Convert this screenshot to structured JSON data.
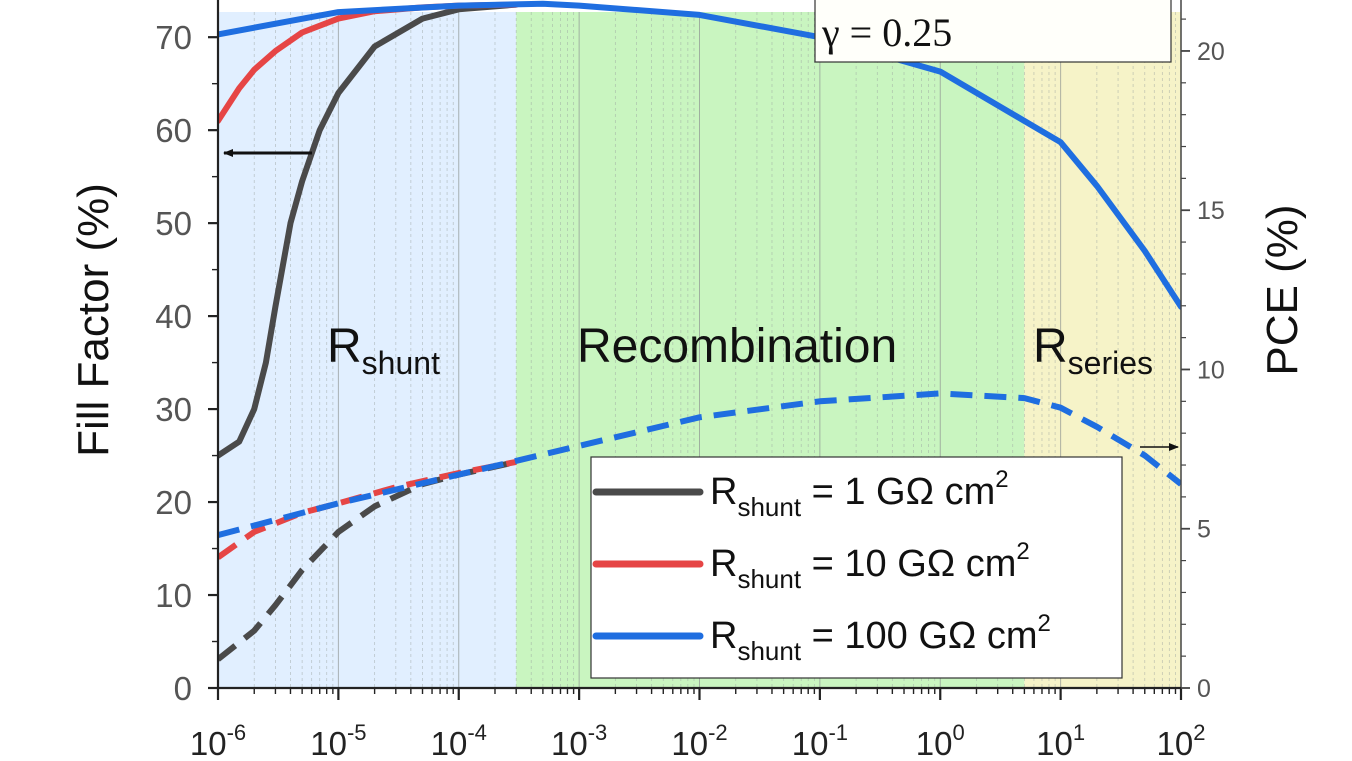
{
  "chart_data": {
    "type": "line",
    "x_scale": "log",
    "xlim": [
      1e-06,
      100
    ],
    "x_ticks": [
      {
        "value": 1e-06,
        "base": "10",
        "exp": "-6"
      },
      {
        "value": 1e-05,
        "base": "10",
        "exp": "-5"
      },
      {
        "value": 0.0001,
        "base": "10",
        "exp": "-4"
      },
      {
        "value": 0.001,
        "base": "10",
        "exp": "-3"
      },
      {
        "value": 0.01,
        "base": "10",
        "exp": "-2"
      },
      {
        "value": 0.1,
        "base": "10",
        "exp": "-1"
      },
      {
        "value": 1,
        "base": "10",
        "exp": "0"
      },
      {
        "value": 10,
        "base": "10",
        "exp": "1"
      },
      {
        "value": 100,
        "base": "10",
        "exp": "2"
      }
    ],
    "y_left": {
      "label": "Fill Factor (%)",
      "lim": [
        0,
        74
      ],
      "ticks": [
        0,
        10,
        20,
        30,
        40,
        50,
        60,
        70
      ]
    },
    "y_right": {
      "label": "PCE (%)",
      "lim": [
        0,
        21.6
      ],
      "ticks": [
        0,
        5,
        10,
        15,
        20
      ]
    },
    "regions": [
      {
        "name": "R",
        "sub": "shunt",
        "from": 1e-06,
        "to": 0.0003,
        "color": "#e1efff"
      },
      {
        "name": "Recombination",
        "sub": "",
        "from": 0.0003,
        "to": 5,
        "color": "#c9f5c0"
      },
      {
        "name": "R",
        "sub": "series",
        "from": 5,
        "to": 100,
        "color": "#f6f3c8"
      }
    ],
    "annotation": "γ = 0.25",
    "legend_position": "bottom-right",
    "series": [
      {
        "name": "R",
        "name_sub": "shunt",
        "name_rest": " = 1 GΩ cm",
        "name_sup": "2",
        "color": "#4a4a4a",
        "ff": {
          "x": [
            1e-06,
            1.5e-06,
            2e-06,
            2.5e-06,
            3e-06,
            4e-06,
            5e-06,
            7e-06,
            1e-05,
            2e-05,
            5e-05,
            0.0001,
            0.0003
          ],
          "y": [
            25,
            26.5,
            30,
            35,
            41,
            50,
            54.5,
            60,
            64,
            69,
            72,
            73,
            73.5
          ]
        },
        "pce": {
          "x": [
            1e-06,
            2e-06,
            3e-06,
            5e-06,
            1e-05,
            2e-05,
            5e-05,
            0.0001,
            0.0003
          ],
          "y": [
            0.9,
            1.8,
            2.6,
            3.7,
            4.9,
            5.7,
            6.4,
            6.7,
            7.1
          ]
        }
      },
      {
        "name": "R",
        "name_sub": "shunt",
        "name_rest": " = 10 GΩ cm",
        "name_sup": "2",
        "color": "#e64545",
        "ff": {
          "x": [
            1e-06,
            1.5e-06,
            2e-06,
            3e-06,
            5e-06,
            1e-05,
            2e-05,
            5e-05,
            0.0001,
            0.0003
          ],
          "y": [
            61,
            64.5,
            66.5,
            68.5,
            70.5,
            72,
            72.8,
            73.2,
            73.4,
            73.5
          ]
        },
        "pce": {
          "x": [
            1e-06,
            2e-06,
            5e-06,
            1e-05,
            3e-05,
            0.0001,
            0.0003
          ],
          "y": [
            4.1,
            4.9,
            5.5,
            5.8,
            6.3,
            6.75,
            7.1
          ]
        }
      },
      {
        "name": "R",
        "name_sub": "shunt",
        "name_rest": " = 100 GΩ cm",
        "name_sup": "2",
        "color": "#1f6ee0",
        "ff": {
          "x": [
            1e-06,
            1e-05,
            0.0001,
            0.0005,
            0.001,
            0.01,
            0.1,
            1,
            10,
            20,
            50,
            100
          ],
          "y": [
            70.3,
            72.7,
            73.4,
            73.6,
            73.4,
            72.4,
            70,
            66.3,
            58.7,
            54,
            47,
            41
          ]
        },
        "pce": {
          "x": [
            1e-06,
            1e-05,
            0.0001,
            0.001,
            0.01,
            0.1,
            1,
            5,
            10,
            20,
            50,
            100
          ],
          "y": [
            4.8,
            5.8,
            6.7,
            7.6,
            8.5,
            9.0,
            9.25,
            9.1,
            8.8,
            8.2,
            7.3,
            6.4
          ]
        }
      }
    ]
  }
}
